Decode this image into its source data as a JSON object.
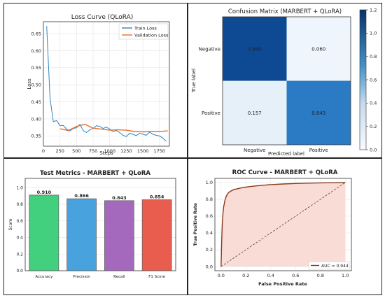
{
  "chart_data": [
    {
      "type": "line",
      "title": "Loss Curve (QLoRA)",
      "xlabel": "Steps",
      "ylabel": "Loss",
      "xlim": [
        0,
        1900
      ],
      "ylim": [
        0.32,
        0.685
      ],
      "xticks": [
        0,
        250,
        500,
        750,
        1000,
        1250,
        1500,
        1750
      ],
      "yticks": [
        0.35,
        0.4,
        0.45,
        0.5,
        0.55,
        0.6,
        0.65
      ],
      "ytick_labels": [
        "0.35",
        "0.40",
        "0.45",
        "0.50",
        "0.55",
        "0.60",
        "0.65"
      ],
      "grid": true,
      "legend": "top-right",
      "series": [
        {
          "name": "Train Loss",
          "color": "#2e86c1",
          "x": [
            50,
            100,
            150,
            200,
            250,
            300,
            350,
            400,
            450,
            500,
            550,
            600,
            650,
            700,
            750,
            800,
            850,
            900,
            950,
            1000,
            1050,
            1100,
            1150,
            1200,
            1250,
            1300,
            1350,
            1400,
            1450,
            1500,
            1550,
            1600,
            1650,
            1700,
            1750,
            1800,
            1850
          ],
          "y": [
            0.672,
            0.46,
            0.392,
            0.395,
            0.38,
            0.381,
            0.37,
            0.365,
            0.372,
            0.374,
            0.384,
            0.366,
            0.36,
            0.368,
            0.372,
            0.38,
            0.378,
            0.372,
            0.376,
            0.37,
            0.363,
            0.366,
            0.36,
            0.352,
            0.348,
            0.358,
            0.355,
            0.351,
            0.358,
            0.355,
            0.352,
            0.361,
            0.355,
            0.352,
            0.35,
            0.344,
            0.335
          ]
        },
        {
          "name": "Validation Loss",
          "color": "#e8702a",
          "x": [
            250,
            375,
            500,
            625,
            750,
            875,
            1000,
            1125,
            1250,
            1375,
            1500,
            1625,
            1750,
            1875
          ],
          "y": [
            0.371,
            0.366,
            0.378,
            0.384,
            0.373,
            0.37,
            0.367,
            0.368,
            0.367,
            0.363,
            0.362,
            0.363,
            0.363,
            0.365
          ]
        }
      ]
    },
    {
      "type": "heatmap",
      "title": "Confusion Matrix (MARBERT + QLoRA)",
      "xlabel": "Predicted label",
      "ylabel": "True label",
      "categories": [
        "Negative",
        "Positive"
      ],
      "values": [
        [
          0.94,
          0.06
        ],
        [
          0.157,
          0.843
        ]
      ],
      "value_labels": [
        [
          "0.940",
          "0.060"
        ],
        [
          "0.157",
          "0.843"
        ]
      ],
      "colorbar": {
        "min": 0.0,
        "max": 1.2,
        "ticks": [
          "0.0",
          "0.2",
          "0.4",
          "0.6",
          "0.8",
          "1.0",
          "1.2"
        ]
      }
    },
    {
      "type": "bar",
      "title": "Test Metrics - MARBERT + QLoRA",
      "ylabel": "Score",
      "categories": [
        "Accuracy",
        "Precision",
        "Recall",
        "F1 Score"
      ],
      "values": [
        0.91,
        0.866,
        0.843,
        0.854
      ],
      "value_labels": [
        "0.910",
        "0.866",
        "0.843",
        "0.854"
      ],
      "colors": [
        "#2ecc71",
        "#3498db",
        "#9b59b6",
        "#e74c3c"
      ],
      "ylim": [
        0,
        1.0
      ],
      "yticks": [
        "0.0",
        "0.2",
        "0.4",
        "0.6",
        "0.8",
        "1.0"
      ],
      "grid": true
    },
    {
      "type": "line",
      "title": "ROC Curve - MARBERT + QLoRA",
      "xlabel": "False Positive Rate",
      "ylabel": "True Positive Rate",
      "xlim": [
        0,
        1.0
      ],
      "ylim": [
        0,
        1.0
      ],
      "ticks": [
        "0.0",
        "0.2",
        "0.4",
        "0.6",
        "0.8",
        "1.0"
      ],
      "grid": true,
      "legend": "bottom-right",
      "series": [
        {
          "name": "AUC = 0.944",
          "color": "#8b3a1a",
          "fill": "#f9dcd5",
          "x": [
            0,
            0.005,
            0.01,
            0.015,
            0.02,
            0.03,
            0.04,
            0.05,
            0.06,
            0.08,
            0.1,
            0.13,
            0.16,
            0.2,
            0.25,
            0.3,
            0.4,
            0.5,
            0.6,
            0.7,
            0.8,
            0.9,
            1.0
          ],
          "y": [
            0,
            0.3,
            0.5,
            0.62,
            0.7,
            0.78,
            0.83,
            0.86,
            0.88,
            0.9,
            0.915,
            0.925,
            0.935,
            0.945,
            0.955,
            0.963,
            0.975,
            0.983,
            0.989,
            0.993,
            0.996,
            0.998,
            1.0
          ]
        }
      ]
    }
  ]
}
